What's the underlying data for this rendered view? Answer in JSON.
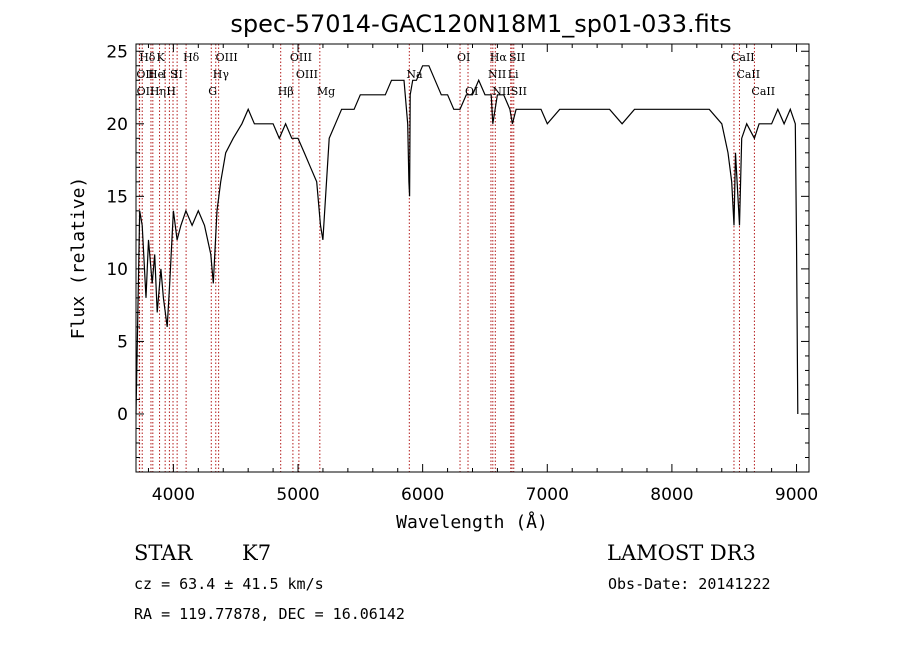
{
  "chart_data": {
    "type": "line",
    "title": "spec-57014-GAC120N18M1_sp01-033.fits",
    "xlabel": "Wavelength (Å)",
    "ylabel": "Flux (relative)",
    "xlim": [
      3700,
      9100
    ],
    "ylim": [
      -4,
      25.5
    ],
    "xticks": [
      4000,
      5000,
      6000,
      7000,
      8000,
      9000
    ],
    "yticks": [
      0,
      5,
      10,
      15,
      20,
      25
    ],
    "grid": false,
    "series": [
      {
        "name": "flux",
        "x": [
          3700,
          3730,
          3750,
          3780,
          3800,
          3830,
          3850,
          3870,
          3900,
          3920,
          3950,
          3970,
          4000,
          4030,
          4060,
          4100,
          4150,
          4200,
          4250,
          4300,
          4320,
          4350,
          4380,
          4420,
          4480,
          4550,
          4600,
          4650,
          4700,
          4800,
          4850,
          4900,
          4950,
          5000,
          5050,
          5100,
          5150,
          5180,
          5200,
          5250,
          5300,
          5350,
          5400,
          5450,
          5500,
          5550,
          5600,
          5650,
          5700,
          5750,
          5800,
          5850,
          5880,
          5890,
          5895,
          5900,
          5920,
          5950,
          6000,
          6050,
          6100,
          6150,
          6200,
          6250,
          6300,
          6350,
          6400,
          6450,
          6500,
          6550,
          6563,
          6600,
          6650,
          6700,
          6720,
          6750,
          6800,
          6850,
          6900,
          6950,
          7000,
          7100,
          7200,
          7300,
          7400,
          7500,
          7600,
          7700,
          7800,
          7900,
          8000,
          8100,
          8200,
          8300,
          8400,
          8450,
          8480,
          8498,
          8510,
          8542,
          8560,
          8600,
          8662,
          8700,
          8800,
          8850,
          8900,
          8950,
          8990,
          9000,
          9010
        ],
        "values": [
          0,
          14,
          13,
          8,
          12,
          9,
          11,
          7,
          10,
          8,
          6,
          9,
          14,
          12,
          13,
          14,
          13,
          14,
          13,
          11,
          9,
          14,
          16,
          18,
          19,
          20,
          21,
          20,
          20,
          20,
          19,
          20,
          19,
          19,
          18,
          17,
          16,
          13,
          12,
          19,
          20,
          21,
          21,
          21,
          22,
          22,
          22,
          22,
          22,
          23,
          23,
          23,
          20,
          16,
          15,
          22,
          23,
          23,
          24,
          24,
          23,
          22,
          22,
          21,
          21,
          22,
          22,
          23,
          22,
          22,
          20,
          22,
          22,
          21,
          20,
          21,
          21,
          21,
          21,
          21,
          20,
          21,
          21,
          21,
          21,
          21,
          20,
          21,
          21,
          21,
          21,
          21,
          21,
          21,
          20,
          18,
          16,
          13,
          18,
          13,
          19,
          20,
          19,
          20,
          20,
          21,
          20,
          21,
          20,
          12,
          0
        ]
      }
    ],
    "spectral_lines": [
      {
        "label": "Hδ",
        "x": 3750,
        "row": 1
      },
      {
        "label": "OII",
        "x": 3727,
        "row": 2
      },
      {
        "label": "OII",
        "x": 3729,
        "row": 3
      },
      {
        "label": "He",
        "x": 3820,
        "row": 2
      },
      {
        "label": "Hη",
        "x": 3835,
        "row": 3
      },
      {
        "label": "K",
        "x": 3889,
        "row": 1
      },
      {
        "label": "I",
        "x": 3934,
        "row": 2
      },
      {
        "label": "H",
        "x": 3968,
        "row": 3
      },
      {
        "label": "S",
        "x": 3997,
        "row": 2
      },
      {
        "label": "II",
        "x": 4030,
        "row": 2
      },
      {
        "label": "Hδ",
        "x": 4102,
        "row": 1
      },
      {
        "label": "OIII",
        "x": 4363,
        "row": 1
      },
      {
        "label": "Hγ",
        "x": 4340,
        "row": 2
      },
      {
        "label": "G",
        "x": 4304,
        "row": 3
      },
      {
        "label": "Hβ",
        "x": 4861,
        "row": 3
      },
      {
        "label": "OIII",
        "x": 4959,
        "row": 1
      },
      {
        "label": "OIII",
        "x": 5007,
        "row": 2
      },
      {
        "label": "Mg",
        "x": 5175,
        "row": 3
      },
      {
        "label": "Na",
        "x": 5893,
        "row": 2
      },
      {
        "label": "OI",
        "x": 6300,
        "row": 1
      },
      {
        "label": "OI",
        "x": 6364,
        "row": 3
      },
      {
        "label": "Hα",
        "x": 6563,
        "row": 1
      },
      {
        "label": "NII",
        "x": 6548,
        "row": 2
      },
      {
        "label": "NII",
        "x": 6583,
        "row": 3
      },
      {
        "label": "SII",
        "x": 6717,
        "row": 1
      },
      {
        "label": "Li",
        "x": 6707,
        "row": 2
      },
      {
        "label": "SII",
        "x": 6731,
        "row": 3
      },
      {
        "label": "CaII",
        "x": 8498,
        "row": 1
      },
      {
        "label": "CaII",
        "x": 8542,
        "row": 2
      },
      {
        "label": "CaII",
        "x": 8662,
        "row": 3
      }
    ]
  },
  "footer": {
    "class_label": "STAR",
    "subclass": "K7",
    "survey": "LAMOST DR3",
    "cz": "cz = 63.4 ± 41.5 km/s",
    "obs_date": "Obs-Date: 20141222",
    "coords": "RA = 119.77878, DEC =  16.06142"
  },
  "colors": {
    "line_marker": "#b31b1b",
    "spectrum": "#000000",
    "axes": "#000000"
  }
}
